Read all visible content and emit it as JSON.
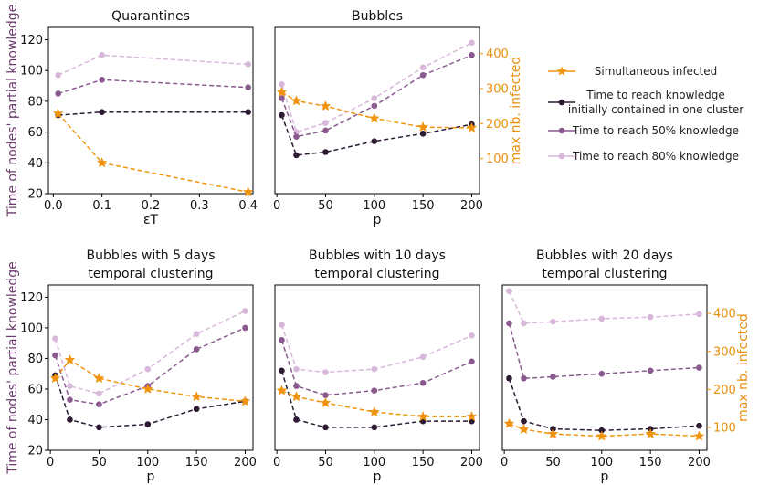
{
  "colors": {
    "orange": "#f0940f",
    "dark": "#2d1a33",
    "mid": "#8a5a8f",
    "light": "#d8b8da",
    "ylabel": "#6b3d6e",
    "y2label": "#e8900c"
  },
  "legend": {
    "items": [
      {
        "key": "sim",
        "lines": [
          "Simultaneous infected"
        ]
      },
      {
        "key": "one",
        "lines": [
          "Time to reach knowledge",
          "initially contained in one cluster"
        ]
      },
      {
        "key": "p50",
        "lines": [
          "Time to reach 50% knowledge"
        ]
      },
      {
        "key": "p80",
        "lines": [
          "Time to reach 80% knowledge"
        ]
      }
    ]
  },
  "chart_data": [
    {
      "id": "quarantines",
      "type": "line",
      "title": [
        "Quarantines"
      ],
      "xlabel": "εT",
      "ylabel": "Time of nodes' partial knowledge",
      "y2label": "",
      "x": [
        0.01,
        0.1,
        0.4
      ],
      "xlim": [
        -0.01,
        0.41
      ],
      "xticks": [
        0.0,
        0.1,
        0.2,
        0.3,
        0.4
      ],
      "xticklabels": [
        "0.0",
        "0.1",
        "0.2",
        "0.3",
        "0.4"
      ],
      "ylim": [
        20,
        128
      ],
      "yticks": [
        20,
        40,
        60,
        80,
        100,
        120
      ],
      "y2lim": [
        20,
        128
      ],
      "y2ticks": [],
      "series": [
        {
          "key": "sim",
          "axis": "y",
          "values": [
            72,
            40,
            21
          ]
        },
        {
          "key": "one",
          "axis": "y",
          "values": [
            71,
            73,
            73
          ]
        },
        {
          "key": "p50",
          "axis": "y",
          "values": [
            85,
            94,
            89
          ]
        },
        {
          "key": "p80",
          "axis": "y",
          "values": [
            97,
            110,
            104
          ]
        }
      ]
    },
    {
      "id": "bubbles",
      "type": "line",
      "title": [
        "Bubbles"
      ],
      "xlabel": "p",
      "ylabel": "",
      "y2label": "max nb. infected",
      "x": [
        5,
        20,
        50,
        100,
        150,
        200
      ],
      "xlim": [
        -2,
        208
      ],
      "xticks": [
        0,
        50,
        100,
        150,
        200
      ],
      "xticklabels": [
        "0",
        "50",
        "100",
        "150",
        "200"
      ],
      "ylim": [
        20,
        128
      ],
      "yticks": [],
      "y2lim": [
        0,
        475
      ],
      "y2ticks": [
        100,
        200,
        300,
        400
      ],
      "series": [
        {
          "key": "sim",
          "axis": "y2",
          "values": [
            290,
            265,
            250,
            215,
            190,
            188
          ]
        },
        {
          "key": "one",
          "axis": "y",
          "values": [
            71,
            45,
            47,
            54,
            59,
            65
          ]
        },
        {
          "key": "p50",
          "axis": "y",
          "values": [
            82,
            57,
            61,
            77,
            97,
            110
          ]
        },
        {
          "key": "p80",
          "axis": "y",
          "values": [
            91,
            60,
            66,
            82,
            102,
            118
          ]
        }
      ]
    },
    {
      "id": "b5",
      "type": "line",
      "title": [
        "Bubbles with 5 days",
        "temporal clustering"
      ],
      "xlabel": "p",
      "ylabel": "Time of nodes' partial knowledge",
      "y2label": "",
      "x": [
        5,
        20,
        50,
        100,
        150,
        200
      ],
      "xlim": [
        -2,
        208
      ],
      "xticks": [
        0,
        50,
        100,
        150,
        200
      ],
      "xticklabels": [
        "0",
        "50",
        "100",
        "150",
        "200"
      ],
      "ylim": [
        20,
        128
      ],
      "yticks": [
        20,
        40,
        60,
        80,
        100,
        120
      ],
      "y2lim": [
        20,
        128
      ],
      "y2ticks": [],
      "series": [
        {
          "key": "sim",
          "axis": "y",
          "values": [
            67,
            79,
            67,
            60,
            55,
            52
          ]
        },
        {
          "key": "one",
          "axis": "y",
          "values": [
            69,
            40,
            35,
            37,
            47,
            52
          ]
        },
        {
          "key": "p50",
          "axis": "y",
          "values": [
            82,
            53,
            50,
            62,
            86,
            100
          ]
        },
        {
          "key": "p80",
          "axis": "y",
          "values": [
            93,
            62,
            57,
            73,
            96,
            111
          ]
        }
      ]
    },
    {
      "id": "b10",
      "type": "line",
      "title": [
        "Bubbles with 10 days",
        "temporal clustering"
      ],
      "xlabel": "p",
      "ylabel": "",
      "y2label": "",
      "x": [
        5,
        20,
        50,
        100,
        150,
        200
      ],
      "xlim": [
        -2,
        208
      ],
      "xticks": [
        0,
        50,
        100,
        150,
        200
      ],
      "xticklabels": [
        "0",
        "50",
        "100",
        "150",
        "200"
      ],
      "ylim": [
        20,
        128
      ],
      "yticks": [],
      "y2lim": [
        20,
        128
      ],
      "y2ticks": [],
      "series": [
        {
          "key": "sim",
          "axis": "y",
          "values": [
            59,
            55,
            51,
            45,
            42,
            42
          ]
        },
        {
          "key": "one",
          "axis": "y",
          "values": [
            72,
            40,
            35,
            35,
            39,
            39
          ]
        },
        {
          "key": "p50",
          "axis": "y",
          "values": [
            92,
            62,
            56,
            59,
            64,
            78
          ]
        },
        {
          "key": "p80",
          "axis": "y",
          "values": [
            102,
            73,
            71,
            73,
            81,
            95
          ]
        }
      ]
    },
    {
      "id": "b20",
      "type": "line",
      "title": [
        "Bubbles with 20 days",
        "temporal clustering"
      ],
      "xlabel": "p",
      "ylabel": "",
      "y2label": "max nb. infected",
      "x": [
        5,
        20,
        50,
        100,
        150,
        200
      ],
      "xlim": [
        -2,
        208
      ],
      "xticks": [
        0,
        50,
        100,
        150,
        200
      ],
      "xticklabels": [
        "0",
        "50",
        "100",
        "150",
        "200"
      ],
      "ylim": [
        20,
        128
      ],
      "yticks": [],
      "y2lim": [
        40,
        475
      ],
      "y2ticks": [
        100,
        200,
        300,
        400
      ],
      "series": [
        {
          "key": "sim",
          "axis": "y2",
          "values": [
            110,
            95,
            83,
            77,
            83,
            77
          ]
        },
        {
          "key": "one",
          "axis": "y",
          "values": [
            67,
            39,
            34,
            33,
            34,
            36
          ]
        },
        {
          "key": "p50",
          "axis": "y",
          "values": [
            103,
            67,
            68,
            70,
            72,
            74
          ]
        },
        {
          "key": "p80",
          "axis": "y",
          "values": [
            124,
            103,
            104,
            106,
            107,
            109
          ]
        }
      ]
    }
  ]
}
